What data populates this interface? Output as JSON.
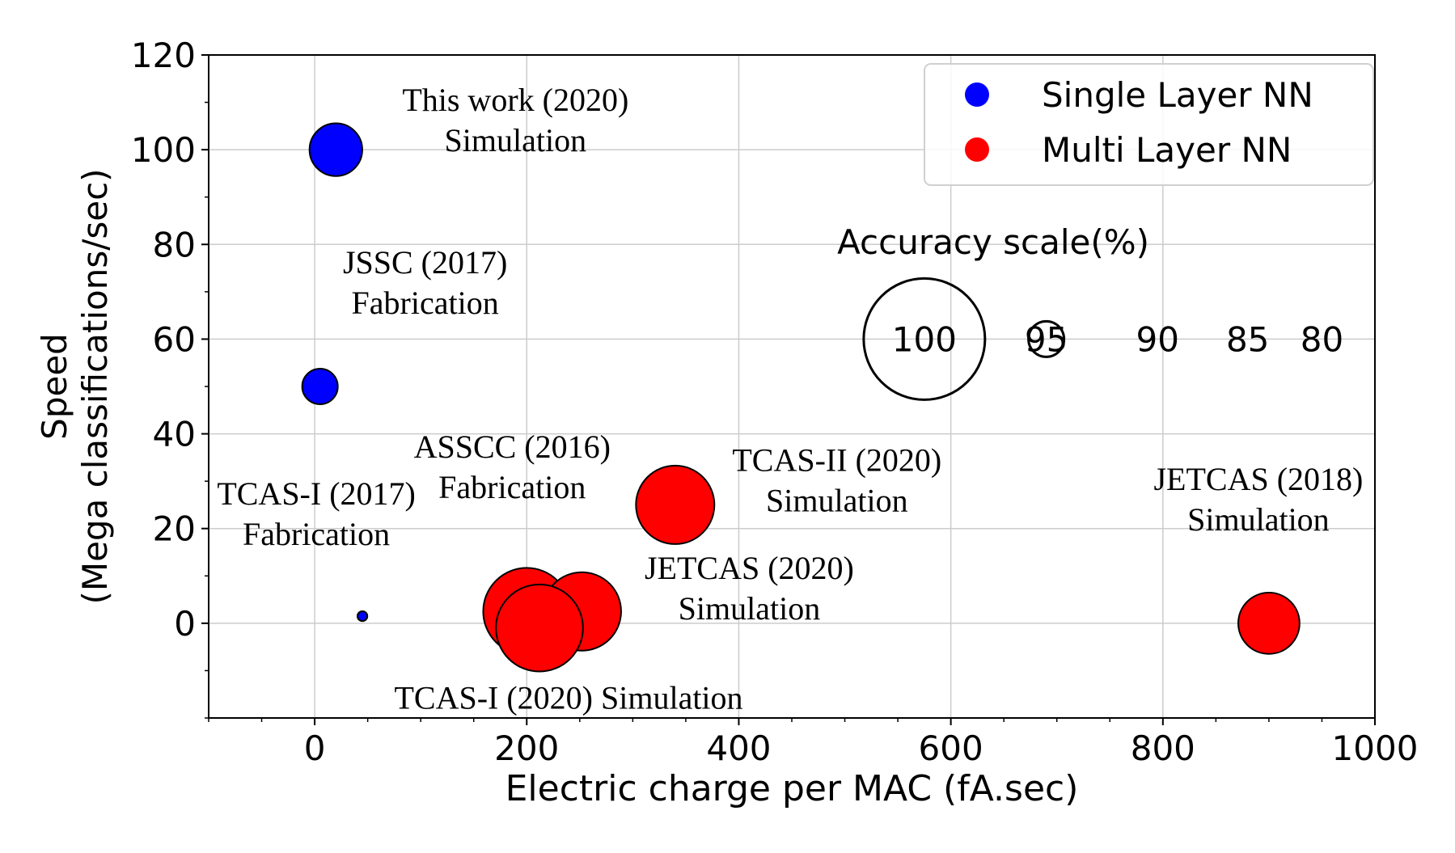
{
  "chart_data": {
    "type": "scatter",
    "title": "",
    "xlabel": "Electric charge per MAC  (fA.sec)",
    "ylabel": "Speed\n(Mega classifications/sec)",
    "xlim": [
      -100,
      1000
    ],
    "ylim": [
      -20,
      120
    ],
    "x_ticks": [
      0,
      200,
      400,
      600,
      800,
      1000
    ],
    "y_ticks": [
      0,
      20,
      40,
      60,
      80,
      100,
      120
    ],
    "grid": true,
    "legend": {
      "placement": "top-right",
      "entries": [
        {
          "label": "Single Layer NN",
          "color": "#0000ff"
        },
        {
          "label": "Multi Layer NN",
          "color": "#ff0000"
        }
      ]
    },
    "series": [
      {
        "name": "Single Layer NN",
        "color": "#0000ff",
        "points": [
          {
            "x": 20,
            "y": 100,
            "accuracy": 96,
            "label": [
              "This work (2020)",
              "Simulation"
            ]
          },
          {
            "x": 5,
            "y": 50,
            "accuracy": 95,
            "label": [
              "JSSC (2017)",
              "Fabrication"
            ]
          },
          {
            "x": 45,
            "y": 1.5,
            "accuracy": 93.5,
            "label": [
              "TCAS-I (2017)",
              "Fabrication"
            ]
          }
        ]
      },
      {
        "name": "Multi Layer NN",
        "color": "#ff0000",
        "points": [
          {
            "x": 200,
            "y": 2.5,
            "accuracy": 98,
            "label": [
              "ASSCC (2016)",
              "Fabrication"
            ]
          },
          {
            "x": 252,
            "y": 2.5,
            "accuracy": 97.5,
            "label": [
              "JETCAS (2020)",
              "Simulation"
            ]
          },
          {
            "x": 212,
            "y": -1,
            "accuracy": 98,
            "label": [
              "TCAS-I (2020) Simulation"
            ]
          },
          {
            "x": 340,
            "y": 25,
            "accuracy": 97.5,
            "label": [
              "TCAS-II (2020)",
              "Simulation"
            ]
          },
          {
            "x": 900,
            "y": 0,
            "accuracy": 96.5,
            "label": [
              "JETCAS (2018)",
              "Simulation"
            ]
          }
        ]
      }
    ],
    "accuracy_scale": {
      "title": "Accuracy scale(%)",
      "y": 60,
      "items": [
        {
          "label": "100",
          "accuracy": 100,
          "x": 575
        },
        {
          "label": "95",
          "accuracy": 95,
          "x": 690
        },
        {
          "label": "90",
          "accuracy": 90,
          "x": 795
        },
        {
          "label": "85",
          "accuracy": 85,
          "x": 880
        },
        {
          "label": "80",
          "accuracy": 80,
          "x": 950
        }
      ]
    }
  }
}
